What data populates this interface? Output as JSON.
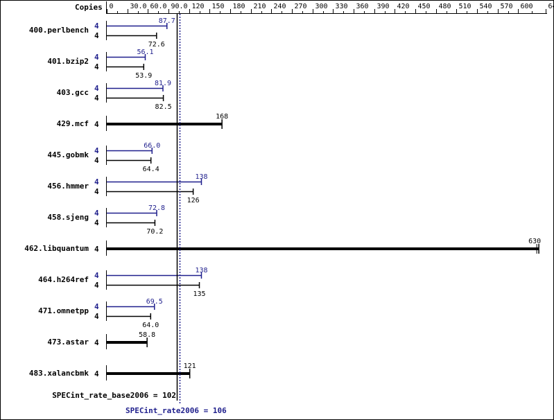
{
  "chart_data": {
    "type": "bar",
    "orientation": "horizontal",
    "header_label": "Copies",
    "x_ticks": [
      0,
      30,
      60,
      90,
      120,
      150,
      180,
      210,
      240,
      270,
      300,
      330,
      360,
      390,
      420,
      450,
      480,
      510,
      540,
      570,
      600,
      640
    ],
    "x_tick_labels": [
      "0",
      "30.0",
      "60.0",
      "90.0",
      "120",
      "150",
      "180",
      "210",
      "240",
      "270",
      "300",
      "330",
      "360",
      "390",
      "420",
      "450",
      "480",
      "510",
      "540",
      "570",
      "600",
      "640"
    ],
    "xlim": [
      0,
      640
    ],
    "colors": {
      "peak": "#1e1e8c",
      "base": "#000000"
    },
    "benchmarks": [
      {
        "name": "400.perlbench",
        "peak_copies": "4",
        "peak": 87.7,
        "peak_label": "87.7",
        "base_copies": "4",
        "base": 72.6,
        "base_label": "72.6"
      },
      {
        "name": "401.bzip2",
        "peak_copies": "4",
        "peak": 56.1,
        "peak_label": "56.1",
        "base_copies": "4",
        "base": 53.9,
        "base_label": "53.9"
      },
      {
        "name": "403.gcc",
        "peak_copies": "4",
        "peak": 81.9,
        "peak_label": "81.9",
        "base_copies": "4",
        "base": 82.5,
        "base_label": "82.5"
      },
      {
        "name": "429.mcf",
        "base_copies": "4",
        "base": 168,
        "base_label": "168"
      },
      {
        "name": "445.gobmk",
        "peak_copies": "4",
        "peak": 66.0,
        "peak_label": "66.0",
        "base_copies": "4",
        "base": 64.4,
        "base_label": "64.4"
      },
      {
        "name": "456.hmmer",
        "peak_copies": "4",
        "peak": 138,
        "peak_label": "138",
        "base_copies": "4",
        "base": 126,
        "base_label": "126"
      },
      {
        "name": "458.sjeng",
        "peak_copies": "4",
        "peak": 72.8,
        "peak_label": "72.8",
        "base_copies": "4",
        "base": 70.2,
        "base_label": "70.2"
      },
      {
        "name": "462.libquantum",
        "base_copies": "4",
        "base": 630,
        "base_label": "630"
      },
      {
        "name": "464.h264ref",
        "peak_copies": "4",
        "peak": 138,
        "peak_label": "138",
        "base_copies": "4",
        "base": 135,
        "base_label": "135"
      },
      {
        "name": "471.omnetpp",
        "peak_copies": "4",
        "peak": 69.5,
        "peak_label": "69.5",
        "base_copies": "4",
        "base": 64.0,
        "base_label": "64.0"
      },
      {
        "name": "473.astar",
        "base_copies": "4",
        "base": 58.8,
        "base_label": "58.8"
      },
      {
        "name": "483.xalancbmk",
        "base_copies": "4",
        "base": 121,
        "base_label": "121"
      }
    ],
    "summary": {
      "base_label": "SPECint_rate_base2006 = 102",
      "base_value": 102,
      "peak_label": "SPECint_rate2006 = 106",
      "peak_value": 106
    }
  }
}
